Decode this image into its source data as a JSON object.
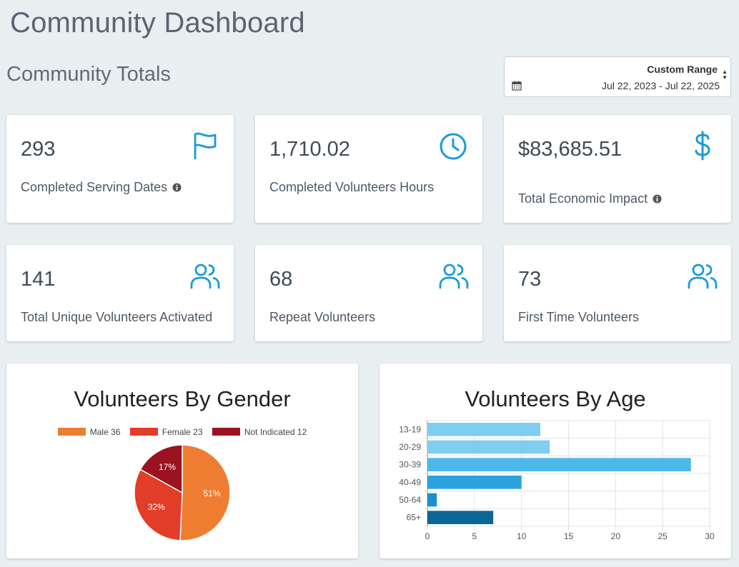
{
  "header": {
    "title": "Community Dashboard"
  },
  "section": {
    "title": "Community Totals"
  },
  "date_range": {
    "label": "Custom Range",
    "value": "Jul 22, 2023 - Jul 22, 2025"
  },
  "stats": [
    {
      "value": "293",
      "label": "Completed Serving Dates",
      "icon": "flag-icon",
      "info": true
    },
    {
      "value": "1,710.02",
      "label": "Completed Volunteers Hours",
      "icon": "clock-icon",
      "info": false
    },
    {
      "value": "$83,685.51",
      "label": "Total Economic Impact",
      "icon": "dollar-icon",
      "info": true
    },
    {
      "value": "141",
      "label": "Total Unique Volunteers Activated",
      "icon": "users-icon",
      "info": false
    },
    {
      "value": "68",
      "label": "Repeat Volunteers",
      "icon": "users-icon",
      "info": false
    },
    {
      "value": "73",
      "label": "First Time Volunteers",
      "icon": "users-icon",
      "info": false
    }
  ],
  "colors": {
    "accent": "#1a9ad6",
    "male": "#ef7d31",
    "female": "#e23d28",
    "not_indicated": "#9b1320"
  },
  "chart_data": [
    {
      "type": "pie",
      "title": "Volunteers By Gender",
      "categories": [
        "Male",
        "Female",
        "Not Indicated"
      ],
      "values": [
        36,
        23,
        12
      ],
      "legend": [
        "Male 36",
        "Female 23",
        "Not Indicated 12"
      ],
      "labels": [
        "51%",
        "32%",
        "17%"
      ],
      "colors": [
        "#ef7d31",
        "#e23d28",
        "#9b1320"
      ],
      "legend_position": "top"
    },
    {
      "type": "bar",
      "orientation": "horizontal",
      "title": "Volunteers By Age",
      "categories": [
        "13-19",
        "20-29",
        "30-39",
        "40-49",
        "50-64",
        "65+"
      ],
      "values": [
        12,
        13,
        28,
        10,
        1,
        7
      ],
      "colors": [
        "#7fcdf0",
        "#7fcdf0",
        "#4cb8e9",
        "#2aa3df",
        "#1a8fd0",
        "#0d6796"
      ],
      "xlim": [
        0,
        30
      ],
      "xticks": [
        "0",
        "5",
        "10",
        "15",
        "20",
        "25",
        "30"
      ],
      "grid": true
    }
  ]
}
